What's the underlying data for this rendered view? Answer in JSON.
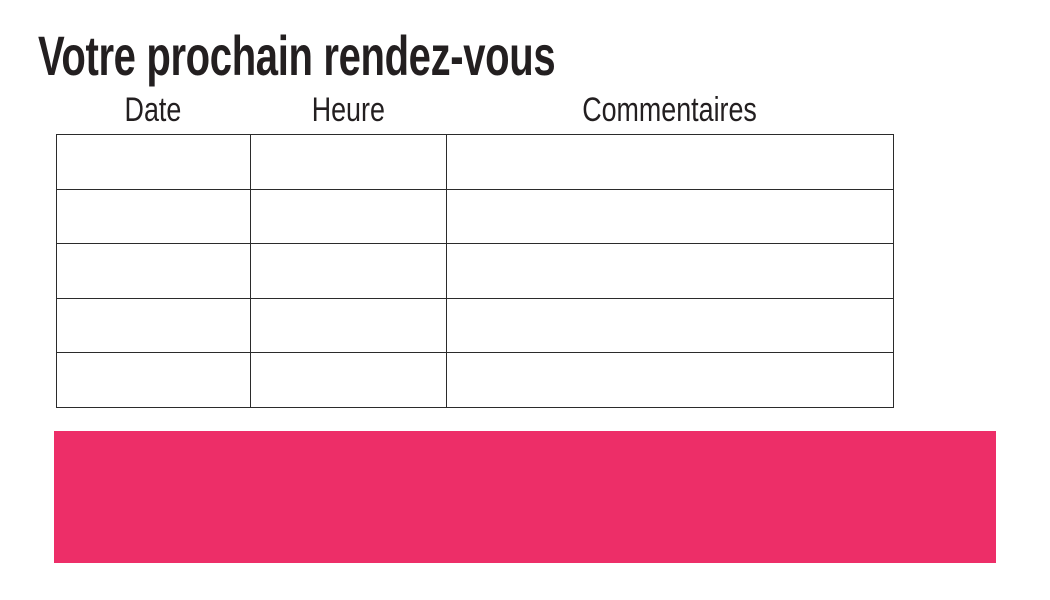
{
  "page": {
    "title": "Votre prochain rendez-vous",
    "background": "#ffffff",
    "text_color": "#231f20"
  },
  "table": {
    "columns": [
      {
        "label": "Date"
      },
      {
        "label": "Heure"
      },
      {
        "label": "Commentaires"
      }
    ],
    "rows": [
      [
        "",
        "",
        ""
      ],
      [
        "",
        "",
        ""
      ],
      [
        "",
        "",
        ""
      ],
      [
        "",
        "",
        ""
      ],
      [
        "",
        "",
        ""
      ]
    ],
    "border_color": "#2b2b2b"
  },
  "banner": {
    "text": "",
    "color": "#ed2e68"
  }
}
